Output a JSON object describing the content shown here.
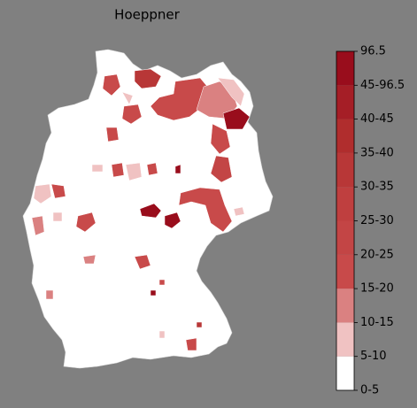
{
  "title": "Hoeppner",
  "colorbar": {
    "labels": [
      "0-5",
      "5-10",
      "10-15",
      "15-20",
      "20-25",
      "25-30",
      "30-35",
      "35-40",
      "40-45",
      "45-96.5",
      "96.5"
    ],
    "colors": [
      "#ffffff",
      "#f0c2c2",
      "#da8181",
      "#c84a4a",
      "#c34545",
      "#bf3f3f",
      "#b83737",
      "#b02d2d",
      "#a51e26",
      "#990d1c"
    ]
  }
}
